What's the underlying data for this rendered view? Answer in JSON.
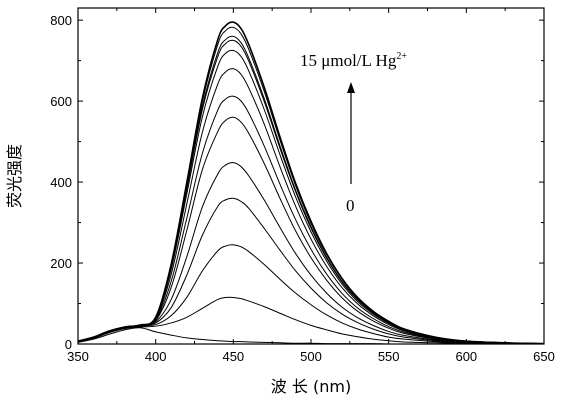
{
  "chart_data": {
    "type": "line",
    "xlabel": "波 长 (nm)",
    "ylabel": "荧光强度",
    "xlim": [
      350,
      650
    ],
    "ylim": [
      0,
      830
    ],
    "xticks": [
      350,
      400,
      450,
      500,
      550,
      600,
      650
    ],
    "yticks": [
      0,
      200,
      400,
      600,
      800
    ],
    "grid": false,
    "annotation_top": "15 μmol/L Hg",
    "annotation_top_sup": "2+",
    "annotation_bottom": "0",
    "peak_x": 450,
    "x": [
      350,
      360,
      370,
      380,
      390,
      400,
      410,
      420,
      430,
      440,
      445,
      450,
      455,
      460,
      470,
      480,
      490,
      500,
      510,
      520,
      530,
      540,
      550,
      560,
      580,
      600,
      625,
      650
    ],
    "series": [
      {
        "values": [
          4,
          12,
          24,
          35,
          40,
          30,
          22,
          15,
          11,
          8,
          7,
          6,
          6,
          5,
          4,
          3,
          2,
          2,
          1,
          1,
          1,
          1,
          0,
          0,
          0,
          0,
          0,
          0
        ]
      },
      {
        "values": [
          5,
          14,
          28,
          38,
          42,
          44,
          52,
          66,
          88,
          110,
          115,
          115,
          112,
          106,
          92,
          76,
          60,
          46,
          35,
          25,
          18,
          12,
          8,
          5,
          3,
          2,
          1,
          1
        ]
      },
      {
        "values": [
          6,
          15,
          29,
          39,
          44,
          48,
          70,
          115,
          180,
          230,
          242,
          245,
          240,
          228,
          196,
          160,
          126,
          97,
          72,
          52,
          37,
          26,
          17,
          12,
          6,
          3,
          2,
          1
        ]
      },
      {
        "values": [
          6,
          16,
          30,
          40,
          44,
          52,
          90,
          170,
          268,
          340,
          356,
          360,
          352,
          335,
          285,
          232,
          181,
          138,
          102,
          74,
          53,
          37,
          25,
          17,
          8,
          4,
          2,
          1
        ]
      },
      {
        "values": [
          6,
          16,
          30,
          40,
          45,
          55,
          110,
          215,
          338,
          420,
          442,
          448,
          438,
          415,
          355,
          288,
          224,
          170,
          126,
          91,
          65,
          46,
          31,
          21,
          10,
          5,
          2,
          1
        ]
      },
      {
        "values": [
          7,
          17,
          31,
          41,
          46,
          58,
          140,
          280,
          430,
          525,
          552,
          560,
          548,
          520,
          445,
          360,
          280,
          213,
          158,
          114,
          81,
          57,
          39,
          26,
          12,
          6,
          3,
          1
        ]
      },
      {
        "values": [
          7,
          17,
          31,
          41,
          46,
          60,
          155,
          310,
          470,
          578,
          605,
          612,
          600,
          570,
          488,
          395,
          308,
          234,
          173,
          125,
          89,
          63,
          43,
          29,
          13,
          6,
          3,
          1
        ]
      },
      {
        "values": [
          7,
          17,
          32,
          42,
          47,
          62,
          172,
          345,
          522,
          642,
          672,
          680,
          666,
          632,
          542,
          438,
          341,
          259,
          192,
          139,
          99,
          70,
          48,
          32,
          14,
          7,
          3,
          1
        ]
      },
      {
        "values": [
          7,
          17,
          32,
          42,
          47,
          64,
          184,
          370,
          560,
          686,
          718,
          725,
          710,
          674,
          578,
          468,
          364,
          277,
          205,
          148,
          105,
          74,
          51,
          34,
          15,
          7,
          3,
          1
        ]
      },
      {
        "values": [
          7,
          17,
          32,
          42,
          47,
          65,
          190,
          382,
          578,
          710,
          742,
          750,
          735,
          698,
          598,
          484,
          377,
          286,
          212,
          153,
          109,
          77,
          53,
          35,
          16,
          7,
          3,
          1
        ]
      },
      {
        "values": [
          7,
          17,
          32,
          42,
          47,
          65,
          192,
          386,
          586,
          720,
          752,
          760,
          744,
          706,
          605,
          490,
          381,
          290,
          215,
          155,
          110,
          78,
          53,
          35,
          16,
          7,
          3,
          1
        ]
      },
      {
        "values": [
          7,
          17,
          32,
          42,
          47,
          66,
          195,
          393,
          598,
          740,
          774,
          782,
          766,
          727,
          623,
          504,
          392,
          298,
          221,
          160,
          113,
          80,
          55,
          36,
          16,
          7,
          3,
          1
        ]
      },
      {
        "values": [
          7,
          17,
          32,
          42,
          47,
          66,
          197,
          398,
          606,
          752,
          786,
          795,
          779,
          739,
          633,
          512,
          398,
          303,
          224,
          162,
          115,
          81,
          56,
          37,
          17,
          7,
          3,
          1
        ]
      }
    ]
  }
}
